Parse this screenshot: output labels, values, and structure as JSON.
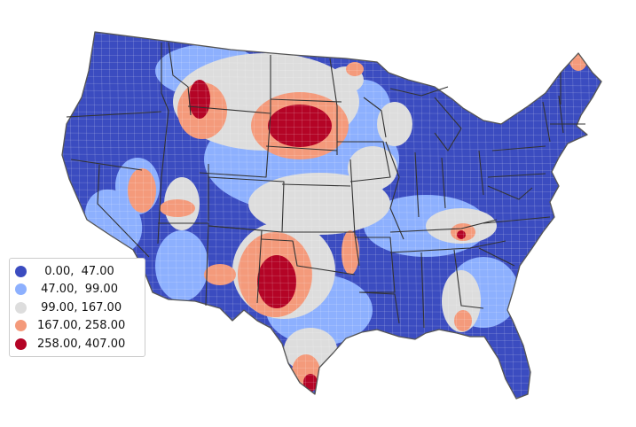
{
  "map": {
    "type": "county choropleth",
    "region": "Contiguous United States",
    "colors": {
      "bin_0": "#3b4cc0",
      "bin_1": "#8db0fe",
      "bin_2": "#dddddd",
      "bin_3": "#f49a7b",
      "bin_4": "#b40426",
      "outline": "#333333",
      "background": "#ffffff"
    },
    "hotspots": [
      {
        "region": "Montana / Wyoming border",
        "bin": 4
      },
      {
        "region": "South Dakota",
        "bin": 4
      },
      {
        "region": "Oklahoma",
        "bin": 4
      },
      {
        "region": "South Texas",
        "bin": 4
      },
      {
        "region": "Northern Maine",
        "bin": 3
      },
      {
        "region": "Eastern Tennessee",
        "bin": 3
      },
      {
        "region": "Florida Panhandle / Georgia",
        "bin": 3
      }
    ]
  },
  "legend": {
    "placement": "left",
    "items": [
      {
        "label": "  0.00,  47.00",
        "color": "#3b4cc0"
      },
      {
        "label": " 47.00,  99.00",
        "color": "#8db0fe"
      },
      {
        "label": " 99.00, 167.00",
        "color": "#dddddd"
      },
      {
        "label": "167.00, 258.00",
        "color": "#f49a7b"
      },
      {
        "label": "258.00, 407.00",
        "color": "#b40426"
      }
    ]
  }
}
